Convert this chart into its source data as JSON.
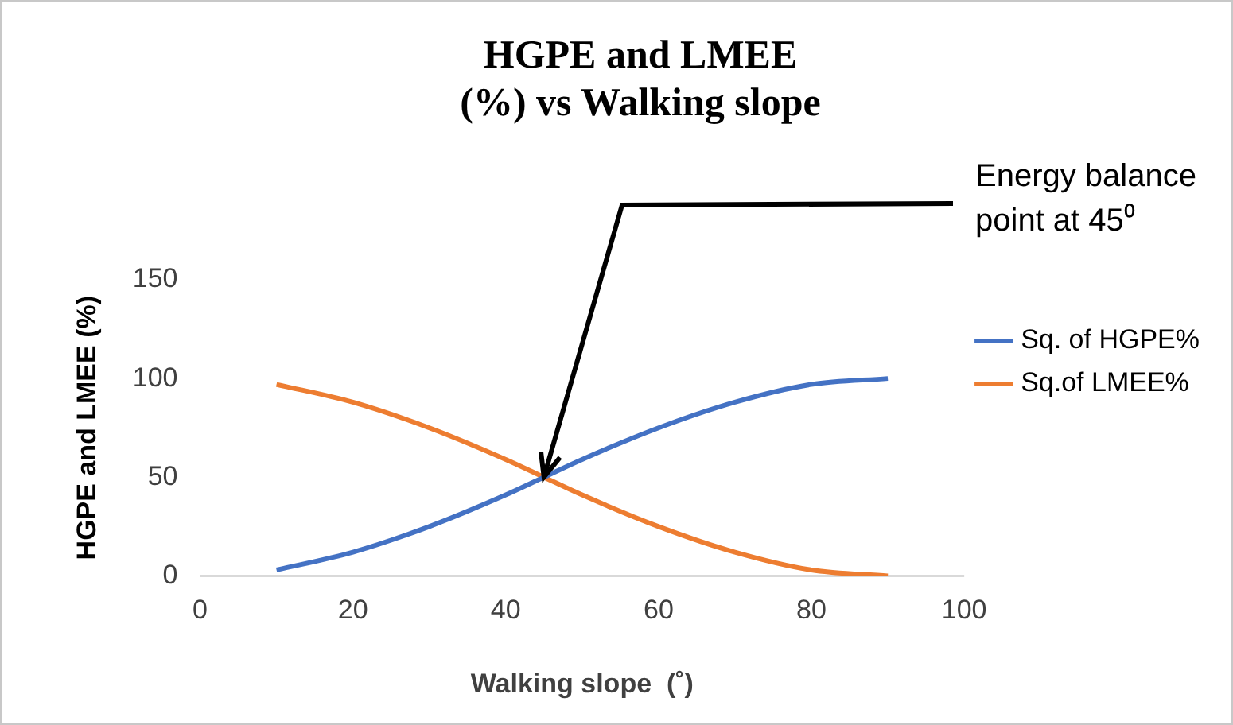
{
  "chart_data": {
    "type": "line",
    "title": "HGPE and LMEE\n(%) vs Walking slope",
    "xlabel": "Walking slope  (˚)",
    "ylabel": "HGPE and LMEE (%)",
    "x": [
      10,
      20,
      30,
      40,
      45,
      50,
      60,
      70,
      80,
      90
    ],
    "series": [
      {
        "name": "Sq. of HGPE%",
        "color": "#4472c4",
        "values": [
          3,
          12,
          25,
          41,
          50,
          59,
          75,
          88,
          97,
          100
        ]
      },
      {
        "name": "Sq.of LMEE%",
        "color": "#ed7d31",
        "values": [
          97,
          88,
          75,
          59,
          50,
          41,
          25,
          12,
          3,
          0
        ]
      }
    ],
    "xlim": [
      0,
      100
    ],
    "xticks": [
      0,
      20,
      40,
      60,
      80,
      100
    ],
    "ylim": [
      0,
      150
    ],
    "yticks": [
      0,
      50,
      100,
      150
    ],
    "grid": false,
    "legend": "right",
    "marker": "none",
    "line_style": "solid",
    "annotations": [
      {
        "text": "Energy balance point at 45⁰",
        "x": 45,
        "y": 50
      }
    ]
  }
}
